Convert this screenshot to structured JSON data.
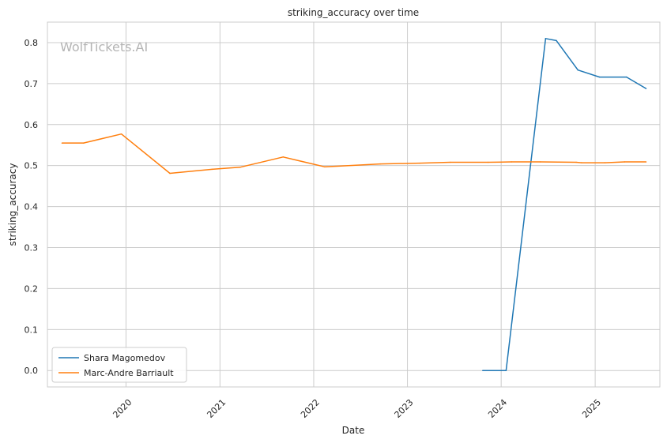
{
  "chart_data": {
    "type": "line",
    "title": "striking_accuracy over time",
    "xlabel": "Date",
    "ylabel": "striking_accuracy",
    "watermark": "WolfTickets.AI",
    "x_ticks": [
      "2020",
      "2021",
      "2022",
      "2023",
      "2024",
      "2025"
    ],
    "y_ticks": [
      "0.0",
      "0.1",
      "0.2",
      "0.3",
      "0.4",
      "0.5",
      "0.6",
      "0.7",
      "0.8"
    ],
    "xlim": [
      "2019-03-01",
      "2025-09-10"
    ],
    "ylim": [
      -0.04,
      0.85
    ],
    "grid": true,
    "legend_position": "lower-left",
    "series": [
      {
        "name": "Shara Magomedov",
        "color": "#1f77b4",
        "points": [
          {
            "x": "2023-10-21",
            "y": 0.0
          },
          {
            "x": "2024-01-20",
            "y": 0.0
          },
          {
            "x": "2024-06-22",
            "y": 0.81
          },
          {
            "x": "2024-08-03",
            "y": 0.805
          },
          {
            "x": "2024-10-26",
            "y": 0.733
          },
          {
            "x": "2025-01-18",
            "y": 0.716
          },
          {
            "x": "2025-05-03",
            "y": 0.716
          },
          {
            "x": "2025-07-18",
            "y": 0.688
          }
        ]
      },
      {
        "name": "Marc-Andre Barriault",
        "color": "#ff7f0e",
        "points": [
          {
            "x": "2019-04-27",
            "y": 0.555
          },
          {
            "x": "2019-07-20",
            "y": 0.555
          },
          {
            "x": "2019-12-14",
            "y": 0.577
          },
          {
            "x": "2020-06-20",
            "y": 0.481
          },
          {
            "x": "2020-12-01",
            "y": 0.491
          },
          {
            "x": "2021-03-20",
            "y": 0.496
          },
          {
            "x": "2021-09-04",
            "y": 0.521
          },
          {
            "x": "2022-02-12",
            "y": 0.497
          },
          {
            "x": "2022-04-16",
            "y": 0.499
          },
          {
            "x": "2022-09-17",
            "y": 0.504
          },
          {
            "x": "2023-02-18",
            "y": 0.506
          },
          {
            "x": "2023-06-17",
            "y": 0.508
          },
          {
            "x": "2023-11-11",
            "y": 0.508
          },
          {
            "x": "2024-02-10",
            "y": 0.509
          },
          {
            "x": "2024-06-01",
            "y": 0.509
          },
          {
            "x": "2024-10-19",
            "y": 0.508
          },
          {
            "x": "2024-11-09",
            "y": 0.507
          },
          {
            "x": "2025-02-08",
            "y": 0.507
          },
          {
            "x": "2025-04-26",
            "y": 0.509
          },
          {
            "x": "2025-07-18",
            "y": 0.509
          }
        ]
      }
    ]
  }
}
